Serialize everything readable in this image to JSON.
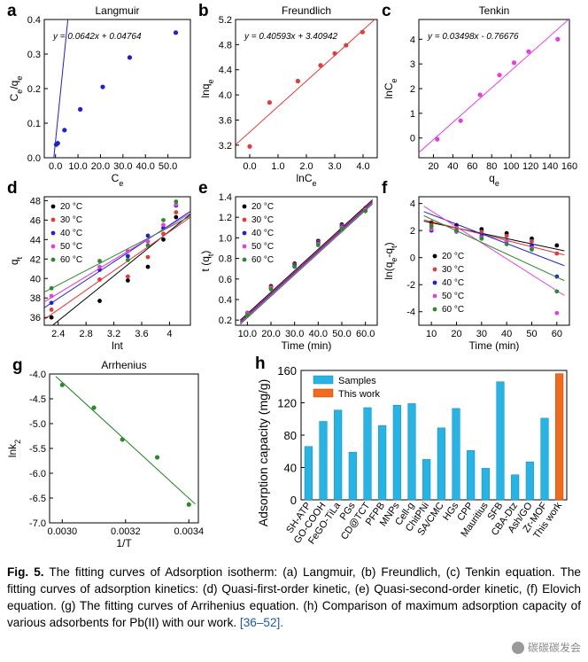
{
  "caption": {
    "fig": "Fig. 5.",
    "text": " The fitting curves of Adsorption isotherm: (a) Langmuir, (b) Freundlich, (c) Tenkin equation. The fitting curves of adsorption kinetics: (d) Quasi-first-order kinetic, (e) Quasi-second-order kinetic, (f) Elovich equation. (g) The fitting curves of Arrihenius equation. (h) Comparison of maximum adsorption capacity of various adsorbents for Pb(II) with our work.",
    "ref": "[36–52]."
  },
  "watermark": "碳碳碳发会",
  "colors": {
    "navy": "#1f1fd6",
    "red": "#e23b3b",
    "magenta": "#e040e0",
    "green": "#2b8a2b",
    "black": "#000000",
    "cyan": "#24b4e6",
    "orange": "#f26a1b"
  },
  "chart_data": [
    {
      "panel": "a",
      "type": "scatter",
      "title": "Langmuir",
      "xlabel": "C_e",
      "ylabel": "C_e/q_e",
      "xlim": [
        -5,
        60
      ],
      "ylim": [
        0,
        0.4
      ],
      "xticks": [
        0,
        10,
        20,
        30,
        40,
        50
      ],
      "yticks": [
        0.0,
        0.1,
        0.2,
        0.3,
        0.4
      ],
      "equation": "y = 0.0642x + 0.04764",
      "fit": {
        "slope": 0.0642,
        "intercept": 0.04764
      },
      "points_x": [
        0.3,
        1.0,
        4.0,
        11.0,
        21.0,
        33.0,
        53.5
      ],
      "points_y": [
        0.038,
        0.042,
        0.08,
        0.14,
        0.205,
        0.29,
        0.362
      ]
    },
    {
      "panel": "b",
      "type": "scatter",
      "title": "Freundlich",
      "xlabel": "lnC_e",
      "ylabel": "lnq_e",
      "xlim": [
        -0.5,
        4.5
      ],
      "ylim": [
        3.0,
        5.2
      ],
      "xticks": [
        0,
        1,
        2,
        3,
        4
      ],
      "yticks": [
        3.2,
        3.6,
        4.0,
        4.4,
        4.8,
        5.2
      ],
      "equation": "y = 0.40593x + 3.40942",
      "fit": {
        "slope": 0.40593,
        "intercept": 3.40942
      },
      "points_x": [
        0.0,
        0.7,
        1.7,
        2.5,
        3.0,
        3.4,
        3.98
      ],
      "points_y": [
        3.18,
        3.88,
        4.22,
        4.47,
        4.66,
        4.79,
        5.0
      ]
    },
    {
      "panel": "c",
      "type": "scatter",
      "title": "Tenkin",
      "xlabel": "q_e",
      "ylabel": "lnC_e",
      "xlim": [
        5,
        160
      ],
      "ylim": [
        -0.8,
        4.8
      ],
      "xticks": [
        20,
        40,
        60,
        80,
        100,
        120,
        140,
        160
      ],
      "yticks": [
        0,
        1,
        2,
        3,
        4
      ],
      "equation": "y = 0.03498x - 0.76676",
      "fit": {
        "slope": 0.03498,
        "intercept": -0.76676
      },
      "points_x": [
        24,
        48,
        68,
        88,
        103,
        118,
        148
      ],
      "points_y": [
        -0.05,
        0.7,
        1.75,
        2.55,
        3.05,
        3.5,
        4.0
      ]
    },
    {
      "panel": "d",
      "type": "scatter",
      "xlabel": "lnt",
      "ylabel": "q_t",
      "xlim": [
        2.2,
        4.3
      ],
      "ylim": [
        35.2,
        48.4
      ],
      "xticks": [
        2.4,
        2.8,
        3.2,
        3.6,
        4.0
      ],
      "yticks": [
        36,
        38,
        40,
        42,
        44,
        46,
        48
      ],
      "x": [
        2.303,
        2.996,
        3.401,
        3.689,
        3.912,
        4.094
      ],
      "series": [
        {
          "name": "20 °C",
          "color": "black",
          "values": [
            36.0,
            37.7,
            39.8,
            41.2,
            44.0,
            46.3
          ],
          "fit": [
            2.2,
            34.5,
            4.3,
            46.6
          ]
        },
        {
          "name": "30 °C",
          "color": "red",
          "values": [
            36.8,
            39.9,
            40.2,
            42.2,
            44.6,
            46.8
          ],
          "fit": [
            2.2,
            35.8,
            4.3,
            46.3
          ]
        },
        {
          "name": "40 °C",
          "color": "navy",
          "values": [
            37.5,
            40.9,
            42.3,
            44.4,
            45.2,
            47.5
          ],
          "fit": [
            2.2,
            37.0,
            4.3,
            46.9
          ]
        },
        {
          "name": "50 °C",
          "color": "magenta",
          "values": [
            38.2,
            41.2,
            42.8,
            43.8,
            45.5,
            47.6
          ],
          "fit": [
            2.2,
            37.6,
            4.3,
            46.7
          ]
        },
        {
          "name": "60 °C",
          "color": "green",
          "values": [
            39.0,
            41.8,
            41.9,
            43.4,
            46.0,
            47.9
          ],
          "fit": [
            2.2,
            38.6,
            4.3,
            46.4
          ]
        }
      ]
    },
    {
      "panel": "e",
      "type": "scatter",
      "xlabel": "Time (min)",
      "ylabel": "t (q_t)",
      "xlim": [
        5,
        65
      ],
      "ylim": [
        0.15,
        1.4
      ],
      "xticks": [
        10,
        20,
        30,
        40,
        50,
        60
      ],
      "yticks": [
        0.2,
        0.4,
        0.6,
        0.8,
        1.0,
        1.2,
        1.4
      ],
      "x": [
        10,
        20,
        30,
        40,
        50,
        60
      ],
      "series": [
        {
          "name": "20 °C",
          "color": "black",
          "values": [
            0.27,
            0.53,
            0.75,
            0.97,
            1.13,
            1.29
          ],
          "fit": [
            7,
            0.2,
            63,
            1.37
          ]
        },
        {
          "name": "30 °C",
          "color": "red",
          "values": [
            0.27,
            0.52,
            0.74,
            0.96,
            1.12,
            1.28
          ],
          "fit": [
            7,
            0.19,
            63,
            1.36
          ]
        },
        {
          "name": "40 °C",
          "color": "navy",
          "values": [
            0.26,
            0.51,
            0.73,
            0.95,
            1.11,
            1.27
          ],
          "fit": [
            7,
            0.18,
            63,
            1.35
          ]
        },
        {
          "name": "50 °C",
          "color": "magenta",
          "values": [
            0.26,
            0.51,
            0.72,
            0.94,
            1.1,
            1.27
          ],
          "fit": [
            7,
            0.17,
            63,
            1.34
          ]
        },
        {
          "name": "60 °C",
          "color": "green",
          "values": [
            0.25,
            0.5,
            0.72,
            0.93,
            1.09,
            1.26
          ],
          "fit": [
            7,
            0.16,
            63,
            1.33
          ]
        }
      ]
    },
    {
      "panel": "f",
      "type": "scatter",
      "xlabel": "Time (min)",
      "ylabel": "ln(q_e-q_t)",
      "xlim": [
        5,
        65
      ],
      "ylim": [
        -5,
        4.5
      ],
      "xticks": [
        10,
        20,
        30,
        40,
        50,
        60
      ],
      "yticks": [
        -4,
        -2,
        0,
        2,
        4
      ],
      "x": [
        10,
        20,
        30,
        40,
        50,
        60
      ],
      "series": [
        {
          "name": "20 °C",
          "color": "black",
          "values": [
            2.6,
            2.4,
            2.1,
            1.8,
            1.4,
            0.9
          ],
          "fit": [
            7,
            2.7,
            63,
            0.5
          ]
        },
        {
          "name": "30 °C",
          "color": "red",
          "values": [
            2.4,
            2.2,
            1.9,
            1.6,
            1.2,
            0.3
          ],
          "fit": [
            7,
            2.8,
            63,
            0.2
          ]
        },
        {
          "name": "40 °C",
          "color": "navy",
          "values": [
            2.0,
            2.0,
            1.6,
            1.2,
            0.9,
            -1.4
          ],
          "fit": [
            7,
            3.4,
            63,
            -0.6
          ]
        },
        {
          "name": "50 °C",
          "color": "magenta",
          "values": [
            2.1,
            1.9,
            1.5,
            1.2,
            0.7,
            -4.1
          ],
          "fit": [
            7,
            3.8,
            63,
            -2.8
          ]
        },
        {
          "name": "60 °C",
          "color": "green",
          "values": [
            2.3,
            2.0,
            1.4,
            1.0,
            0.6,
            -2.5
          ],
          "fit": [
            7,
            3.1,
            63,
            -1.7
          ]
        }
      ]
    },
    {
      "panel": "g",
      "type": "scatter",
      "title": "Arrhenius",
      "xlabel": "1/T",
      "ylabel": "lnk_2",
      "xlim": [
        0.00296,
        0.00343
      ],
      "ylim": [
        -7.0,
        -4.0
      ],
      "xticks": [
        0.003,
        0.0032,
        0.0034
      ],
      "yticks": [
        -4.0,
        -4.5,
        -5.0,
        -5.5,
        -6.0,
        -6.5,
        -7.0
      ],
      "points_x": [
        0.003,
        0.0031,
        0.00319,
        0.0033,
        0.0034
      ],
      "points_y": [
        -4.22,
        -4.68,
        -5.32,
        -5.68,
        -6.63
      ],
      "fit": [
        0.00298,
        -4.05,
        0.00342,
        -6.62
      ]
    },
    {
      "panel": "h",
      "type": "bar",
      "ylabel": "Adsorption capacity (mg/g)",
      "ylim": [
        0,
        160
      ],
      "yticks": [
        0,
        40,
        80,
        120,
        160
      ],
      "legend": [
        "Samples",
        "This work"
      ],
      "categories": [
        "SH-ATP",
        "GO-COOH",
        "FeGO-TiLa",
        "PGs",
        "CD@TCT",
        "PFPB",
        "MNPs",
        "Cell-g",
        "ChitPNi",
        "SA/CMC",
        "HGs",
        "CPP",
        "Mauritius",
        "SFB",
        "CBA-Dtz",
        "Ash/GO",
        "Zr-MOF",
        "This work"
      ],
      "values": [
        66,
        97,
        111,
        59,
        114,
        92,
        117,
        119,
        50,
        89,
        113,
        61,
        39,
        146,
        31,
        47,
        101,
        156
      ]
    }
  ]
}
